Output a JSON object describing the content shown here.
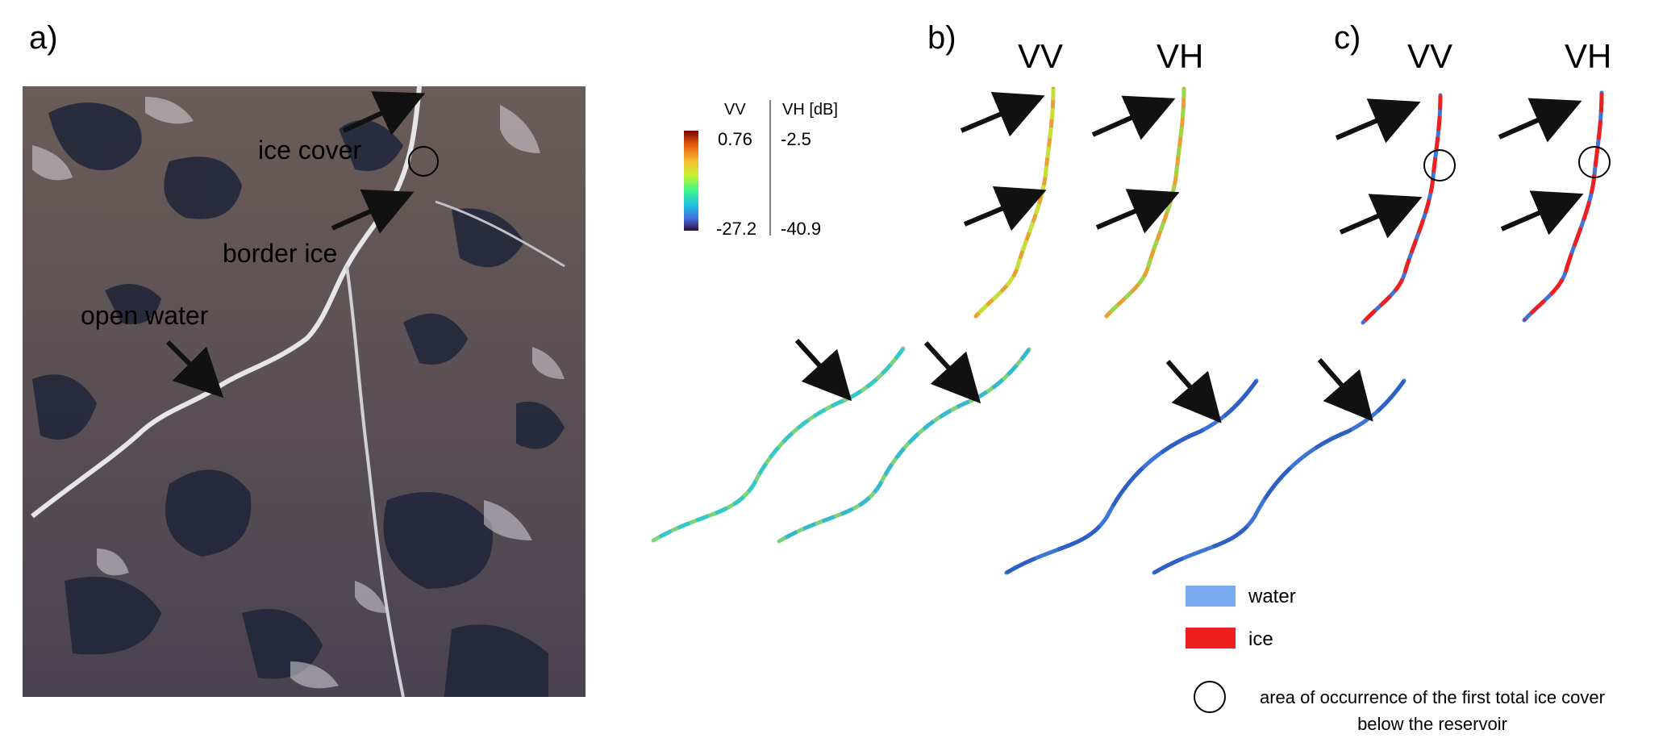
{
  "panels": {
    "a": {
      "label": "a)"
    },
    "b": {
      "label": "b)",
      "col_vv": "VV",
      "col_vh": "VH"
    },
    "c": {
      "label": "c)",
      "col_vv": "VV",
      "col_vh": "VH"
    }
  },
  "satellite_annotations": {
    "ice_cover": "ice cover",
    "border_ice": "border ice",
    "open_water": "open water"
  },
  "colorbar": {
    "header_vv": "VV",
    "header_vh": "VH [dB]",
    "vv_max": "0.76",
    "vv_min": "-27.2",
    "vh_max": "-2.5",
    "vh_min": "-40.9",
    "colormap": [
      "#30123b",
      "#4669dc",
      "#1fbfe3",
      "#3bf58b",
      "#c3f133",
      "#f8bb33",
      "#e35a0c",
      "#7a0403"
    ]
  },
  "legend": {
    "water_label": "water",
    "water_color": "#7aaaf0",
    "ice_label": "ice",
    "ice_color": "#ee1f1f",
    "circle_label_line1": "area of occurrence of the first total ice cover",
    "circle_label_line2": "below the reservoir"
  },
  "colors": {
    "river_b_upper": "#e8a030",
    "river_b_lower": "#7fd27a",
    "river_c": "#3d74d8",
    "arrow": "#111111"
  }
}
